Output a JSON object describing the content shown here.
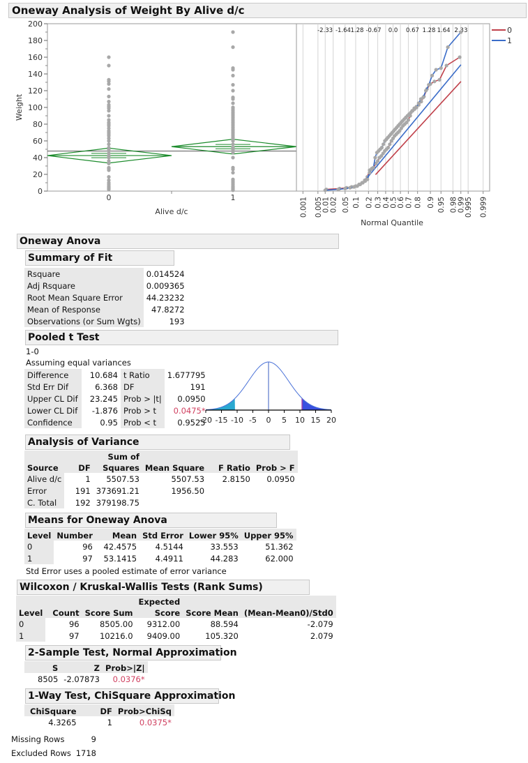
{
  "report": {
    "title": "Oneway Analysis of Weight By Alive d/c"
  },
  "plot": {
    "y_label": "Weight",
    "x_label": "Alive d/c",
    "y_ticks": [
      "200",
      "180",
      "160",
      "140",
      "120",
      "100",
      "80",
      "60",
      "40",
      "20",
      "0"
    ],
    "x_ticks": [
      "0",
      "1"
    ],
    "quantile_x_label": "Normal Quantile",
    "quantile_top_ticks": [
      "-2.33",
      "-1.64",
      "1.28",
      "-0.67",
      "0.0",
      "0.67",
      "1.28",
      "1.64",
      "2.33"
    ],
    "quantile_bottom_ticks": [
      "0.001",
      "0.005",
      "0.01",
      "0.02",
      "0.05",
      "0.1",
      "0.2",
      "0.3",
      "0.4",
      "0.5",
      "0.6",
      "0.7",
      "0.8",
      "0.9",
      "0.95",
      "0.98",
      "0.99",
      "0.995",
      "0.999"
    ],
    "legend": [
      {
        "label": "0",
        "color": "#c0404a"
      },
      {
        "label": "1",
        "color": "#3a6cc8"
      }
    ],
    "colors": {
      "points": "#a8a8a8",
      "diamond": "#1a8a2a",
      "grand_mean": "#555555"
    }
  },
  "chart_data": {
    "type": "scatter",
    "title": "Oneway Analysis of Weight By Alive d/c",
    "xlabel": "Alive d/c",
    "ylabel": "Weight",
    "ylim": [
      0,
      200
    ],
    "categories": [
      "0",
      "1"
    ],
    "series": [
      {
        "name": "0",
        "n": 96,
        "mean": 42.4575,
        "lower95": 33.553,
        "upper95": 51.362,
        "values": [
          2,
          3,
          4,
          5,
          6,
          8,
          10,
          13,
          17,
          25,
          27,
          28,
          33,
          36,
          40,
          42,
          45,
          48,
          50,
          52,
          56,
          60,
          63,
          66,
          68,
          70,
          72,
          75,
          78,
          80,
          82,
          85,
          90,
          96,
          99,
          101,
          103,
          107,
          113,
          122,
          128,
          131,
          133,
          150,
          160
        ]
      },
      {
        "name": "1",
        "n": 97,
        "mean": 53.1415,
        "lower95": 44.283,
        "upper95": 62.0,
        "values": [
          1,
          2,
          3,
          4,
          5,
          6,
          8,
          10,
          12,
          14,
          22,
          26,
          28,
          40,
          46,
          48,
          50,
          52,
          56,
          60,
          62,
          64,
          66,
          68,
          70,
          72,
          74,
          76,
          78,
          80,
          82,
          84,
          86,
          88,
          90,
          92,
          94,
          96,
          98,
          100,
          105,
          110,
          112,
          120,
          127,
          138,
          145,
          147,
          172,
          190
        ]
      }
    ],
    "grand_mean": 47.8272,
    "quantile_plot": {
      "xlabel": "Normal Quantile",
      "legend": [
        "0",
        "1"
      ]
    }
  },
  "oneway_anova": {
    "title": "Oneway Anova",
    "summary_of_fit": {
      "title": "Summary of Fit",
      "rows": [
        {
          "label": "Rsquare",
          "value": "0.014524"
        },
        {
          "label": "Adj Rsquare",
          "value": "0.009365"
        },
        {
          "label": "Root Mean Square Error",
          "value": "44.23232"
        },
        {
          "label": "Mean of Response",
          "value": "47.8272"
        },
        {
          "label": "Observations (or Sum Wgts)",
          "value": "193"
        }
      ]
    },
    "pooled_t": {
      "title": "Pooled t Test",
      "comparison": "1-0",
      "assumption": "Assuming equal variances",
      "left": [
        {
          "label": "Difference",
          "value": "10.684"
        },
        {
          "label": "Std Err Dif",
          "value": "6.368"
        },
        {
          "label": "Upper CL Dif",
          "value": "23.245"
        },
        {
          "label": "Lower CL Dif",
          "value": "-1.876"
        },
        {
          "label": "Confidence",
          "value": "0.95"
        }
      ],
      "right": [
        {
          "label": "t Ratio",
          "value": "1.677795"
        },
        {
          "label": "DF",
          "value": "191"
        },
        {
          "label": "Prob > |t|",
          "value": "0.0950"
        },
        {
          "label": "Prob > t",
          "value": "0.0475*"
        },
        {
          "label": "Prob < t",
          "value": "0.9525"
        }
      ],
      "axis_ticks": [
        "-20",
        "-15",
        "-10",
        "-5",
        "0",
        "5",
        "10",
        "15",
        "20"
      ]
    },
    "anova": {
      "title": "Analysis of Variance",
      "headers": [
        "Source",
        "DF",
        "Sum of Squares",
        "Mean Square",
        "F Ratio",
        "Prob > F"
      ],
      "header_top": {
        "sum_of": "Sum of",
        "squares": "Squares"
      },
      "rows": [
        {
          "source": "Alive d/c",
          "df": "1",
          "ss": "5507.53",
          "ms": "5507.53",
          "f": "2.8150",
          "p": "0.0950"
        },
        {
          "source": "Error",
          "df": "191",
          "ss": "373691.21",
          "ms": "1956.50",
          "f": "",
          "p": ""
        },
        {
          "source": "C. Total",
          "df": "192",
          "ss": "379198.75",
          "ms": "",
          "f": "",
          "p": ""
        }
      ]
    },
    "means": {
      "title": "Means for Oneway Anova",
      "headers": [
        "Level",
        "Number",
        "Mean",
        "Std Error",
        "Lower 95%",
        "Upper 95%"
      ],
      "rows": [
        {
          "level": "0",
          "number": "96",
          "mean": "42.4575",
          "se": "4.5144",
          "lower": "33.553",
          "upper": "51.362"
        },
        {
          "level": "1",
          "number": "97",
          "mean": "53.1415",
          "se": "4.4911",
          "lower": "44.283",
          "upper": "62.000"
        }
      ],
      "note": "Std Error uses a pooled estimate of error variance"
    }
  },
  "wilcoxon": {
    "title": "Wilcoxon / Kruskal-Wallis Tests (Rank Sums)",
    "headers": {
      "level": "Level",
      "count": "Count",
      "score_sum": "Score Sum",
      "expected_top": "Expected",
      "expected_bottom": "Score",
      "score_mean": "Score Mean",
      "z": "(Mean-Mean0)/Std0"
    },
    "rows": [
      {
        "level": "0",
        "count": "96",
        "score_sum": "8505.00",
        "expected": "9312.00",
        "score_mean": "88.594",
        "z": "-2.079"
      },
      {
        "level": "1",
        "count": "97",
        "score_sum": "10216.0",
        "expected": "9409.00",
        "score_mean": "105.320",
        "z": "2.079"
      }
    ],
    "two_sample": {
      "title": "2-Sample Test, Normal Approximation",
      "headers": [
        "S",
        "Z",
        "Prob>|Z|"
      ],
      "values": {
        "s": "8505",
        "z": "-2.07873",
        "p": "0.0376*"
      }
    },
    "chisq": {
      "title": "1-Way Test, ChiSquare Approximation",
      "headers": [
        "ChiSquare",
        "DF",
        "Prob>ChiSq"
      ],
      "values": {
        "chisq": "4.3265",
        "df": "1",
        "p": "0.0375*"
      }
    }
  },
  "footer": {
    "missing_label": "Missing Rows",
    "missing_value": "9",
    "excluded_label": "Excluded Rows",
    "excluded_value": "1718"
  }
}
